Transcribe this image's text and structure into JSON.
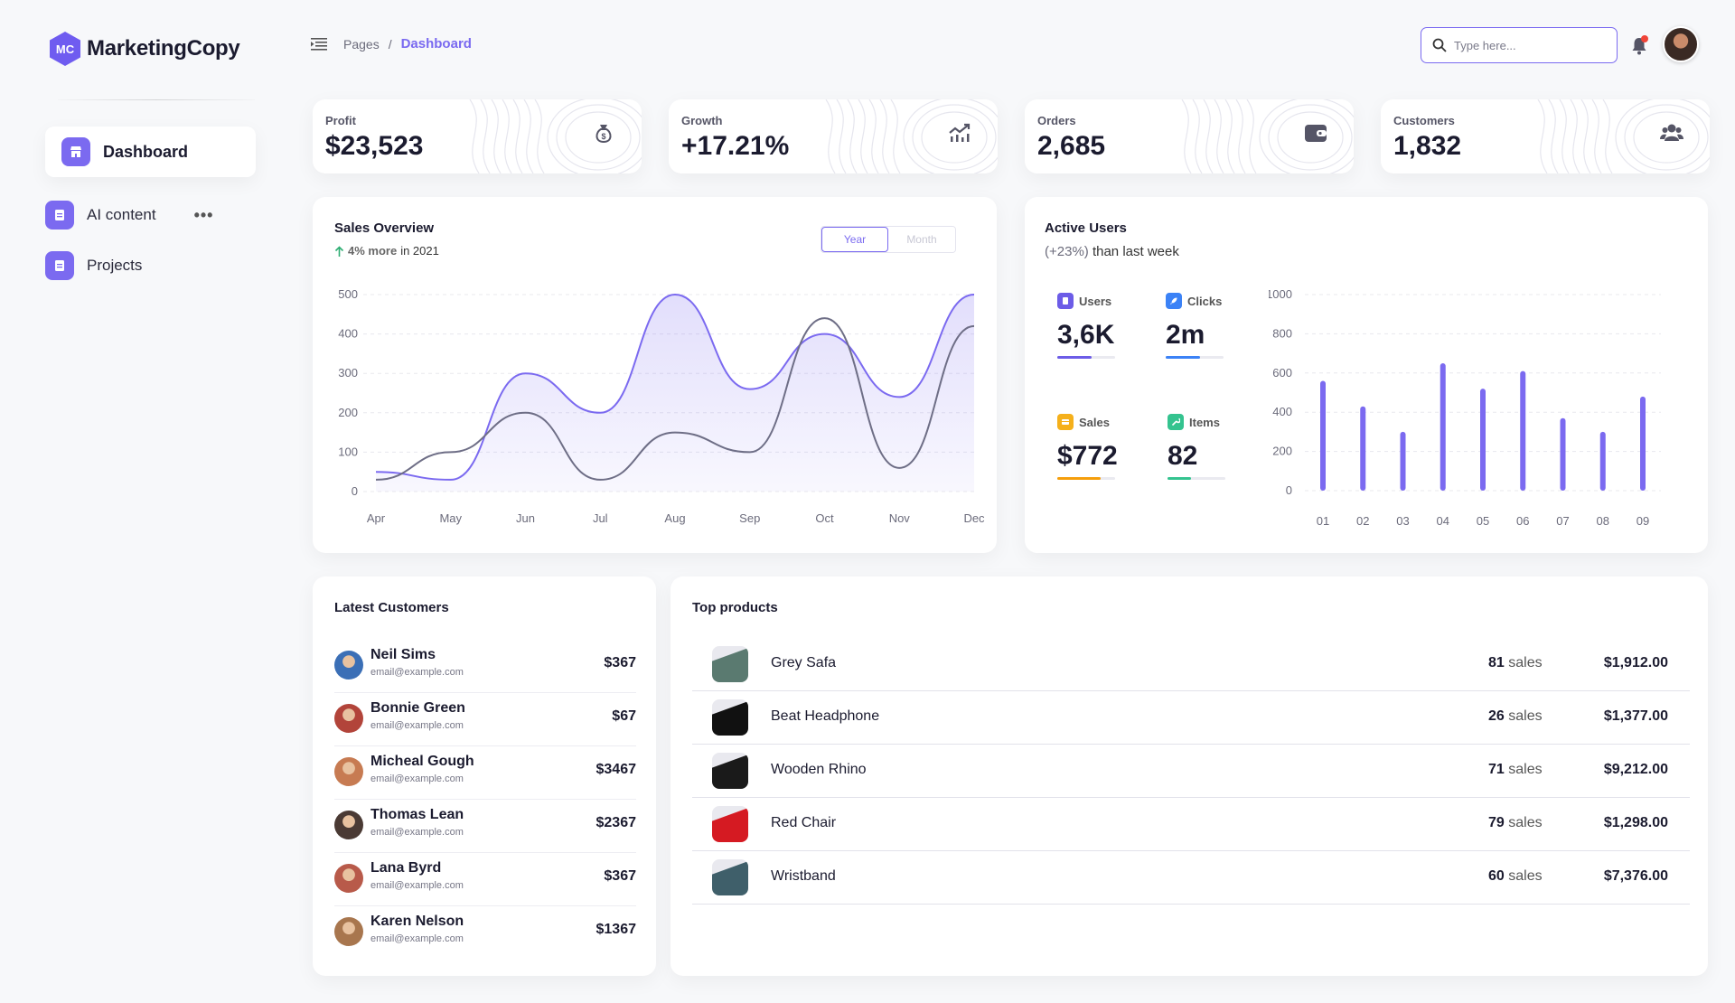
{
  "app": {
    "name": "MarketingCopy",
    "logo_initials": "MC"
  },
  "sidebar": {
    "items": [
      {
        "label": "Dashboard",
        "active": true,
        "icon": "store-icon"
      },
      {
        "label": "AI content",
        "active": false,
        "icon": "document-icon",
        "more": "•••"
      },
      {
        "label": "Projects",
        "active": false,
        "icon": "document-icon"
      }
    ]
  },
  "header": {
    "breadcrumb": {
      "parent": "Pages",
      "separator": "/",
      "current": "Dashboard"
    },
    "search": {
      "placeholder": "Type here...",
      "value": ""
    }
  },
  "stats": [
    {
      "label": "Profit",
      "value": "$23,523",
      "icon": "money-bag-icon"
    },
    {
      "label": "Growth",
      "value": "+17.21%",
      "icon": "trend-up-icon"
    },
    {
      "label": "Orders",
      "value": "2,685",
      "icon": "wallet-icon"
    },
    {
      "label": "Customers",
      "value": "1,832",
      "icon": "users-icon"
    }
  ],
  "sales_overview": {
    "title": "Sales Overview",
    "subtitle_highlight": "4% more",
    "subtitle_rest": "in 2021",
    "toggle": {
      "year": "Year",
      "month": "Month",
      "selected": "Year"
    }
  },
  "active_users": {
    "title": "Active Users",
    "subtitle_pct": "(+23%)",
    "subtitle_rest": "than last week",
    "metrics": [
      {
        "label": "Users",
        "value": "3,6K",
        "color": "#6c5ce7",
        "progress": 0.6,
        "icon": "clipboard-icon"
      },
      {
        "label": "Clicks",
        "value": "2m",
        "color": "#3b82f6",
        "progress": 0.6,
        "icon": "rocket-icon"
      },
      {
        "label": "Sales",
        "value": "$772",
        "color": "#f59e0b",
        "progress": 0.75,
        "icon": "cart-icon"
      },
      {
        "label": "Items",
        "value": "82",
        "color": "#34c38f",
        "progress": 0.4,
        "icon": "wrench-icon"
      }
    ]
  },
  "chart_data": [
    {
      "type": "area",
      "title": "Sales Overview",
      "categories": [
        "Apr",
        "May",
        "Jun",
        "Jul",
        "Aug",
        "Sep",
        "Oct",
        "Nov",
        "Dec"
      ],
      "ylim": [
        0,
        500
      ],
      "yticks": [
        "500",
        "400",
        "300",
        "200",
        "100",
        "0"
      ],
      "grid": true,
      "series": [
        {
          "values": [
            50,
            30,
            300,
            200,
            500,
            260,
            400,
            240,
            500
          ],
          "color": "#7b6af0",
          "fill": true
        },
        {
          "values": [
            30,
            100,
            200,
            30,
            150,
            100,
            440,
            60,
            420
          ],
          "color": "#6e6e86",
          "fill": false
        }
      ]
    },
    {
      "type": "bar",
      "title": "Active Users",
      "categories": [
        "01",
        "02",
        "03",
        "04",
        "05",
        "06",
        "07",
        "08",
        "09"
      ],
      "values": [
        560,
        430,
        300,
        650,
        520,
        610,
        370,
        300,
        480
      ],
      "ylim": [
        0,
        1000
      ],
      "yticks": [
        "1000",
        "800",
        "600",
        "400",
        "200",
        "0"
      ],
      "grid": true,
      "color": "#7b6af0"
    }
  ],
  "latest_customers": {
    "title": "Latest Customers",
    "rows": [
      {
        "name": "Neil Sims",
        "email": "email@example.com",
        "amount": "$367",
        "avatar_color": "#3b6fb6"
      },
      {
        "name": "Bonnie Green",
        "email": "email@example.com",
        "amount": "$67",
        "avatar_color": "#b2443a"
      },
      {
        "name": "Micheal Gough",
        "email": "email@example.com",
        "amount": "$3467",
        "avatar_color": "#c77b52"
      },
      {
        "name": "Thomas Lean",
        "email": "email@example.com",
        "amount": "$2367",
        "avatar_color": "#4a3a34"
      },
      {
        "name": "Lana Byrd",
        "email": "email@example.com",
        "amount": "$367",
        "avatar_color": "#b85a4a"
      },
      {
        "name": "Karen Nelson",
        "email": "email@example.com",
        "amount": "$1367",
        "avatar_color": "#a8764e"
      }
    ]
  },
  "top_products": {
    "title": "Top products",
    "sales_suffix": "sales",
    "rows": [
      {
        "name": "Grey Safa",
        "sales": "81",
        "price": "$1,912.00",
        "thumb_color": "#5a7a70"
      },
      {
        "name": "Beat Headphone",
        "sales": "26",
        "price": "$1,377.00",
        "thumb_color": "#111111"
      },
      {
        "name": "Wooden Rhino",
        "sales": "71",
        "price": "$9,212.00",
        "thumb_color": "#1a1a1a"
      },
      {
        "name": "Red Chair",
        "sales": "79",
        "price": "$1,298.00",
        "thumb_color": "#d51a22"
      },
      {
        "name": "Wristband",
        "sales": "60",
        "price": "$7,376.00",
        "thumb_color": "#3f5f6a"
      }
    ]
  }
}
